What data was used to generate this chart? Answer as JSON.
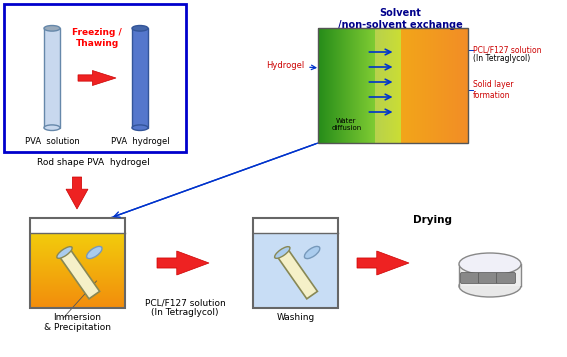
{
  "bg_color": "#ffffff",
  "blue_box_color": "#0000cc",
  "red_color": "#ff0000",
  "dark_blue_text": "#00008B",
  "arrow_red": "#ee2222",
  "labels": {
    "freezing_thawing": "Freezing /\nThawing",
    "pva_solution": "PVA  solution",
    "pva_hydrogel": "PVA  hydrogel",
    "rod_shape": "Rod shape PVA  hydrogel",
    "solvent_title": "Solvent\n/non-solvent exchange",
    "hydrogel_label": "Hydrogel",
    "water_diffusion": "Water\ndiffusion",
    "pcl_solution_right_1": "PCL/F127 solution",
    "pcl_solution_right_2": "(In Tetraglycol)",
    "solid_layer": "Solid layer\nformation",
    "immersion": "Immersion\n& Precipitation",
    "pcl_solution_bottom_1": "PCL/F127 solution",
    "pcl_solution_bottom_2": "(In Tetraglycol)",
    "washing": "Washing",
    "drying": "Drying"
  },
  "tube1_body": "#c8d8ee",
  "tube1_edge": "#6688aa",
  "tube1_cap": "#99aabb",
  "tube2_body": "#5577cc",
  "tube2_edge": "#335599",
  "tube2_cap": "#4466aa",
  "green_left": "#3aaa3a",
  "yellow_mid": "#d4e870",
  "orange_right": "#f5a040",
  "beaker1_fill": "#f5a040",
  "beaker1_fill_bottom": "#ee8800",
  "beaker2_fill": "#c8ddf5",
  "tube_in_beaker_body": "#f5f0c8",
  "tube_in_beaker_edge": "#888855",
  "tube_cap_beaker": "#aaccee",
  "dish_color": "#e8e8e8"
}
